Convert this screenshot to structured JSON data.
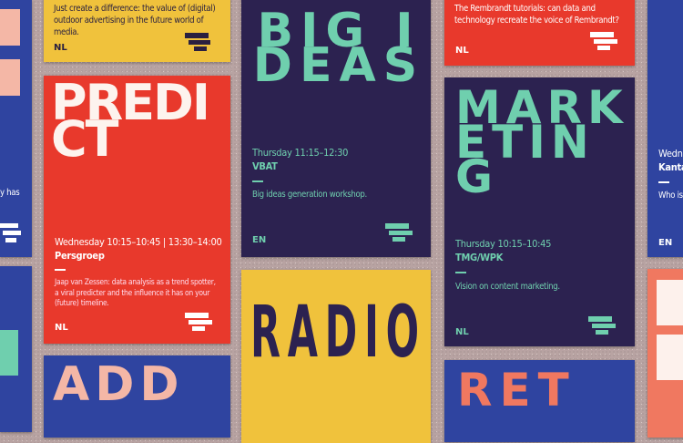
{
  "colors": {
    "red": "#e8392c",
    "yellow": "#f0c23c",
    "navy": "#2c2250",
    "blue": "#2f44a0",
    "mint": "#6fcfae",
    "pink": "#f4b7a6",
    "salmon": "#f07860"
  },
  "posters": {
    "yellow_top": {
      "desc": "Just create a difference: the value of (digital) outdoor advertising in the future world of media.",
      "lang": "NL"
    },
    "red_top": {
      "desc": "The Rembrandt tutorials: can data and technology recreate the voice of Rembrandt?",
      "lang": "NL"
    },
    "predict": {
      "headline": "PREDICT",
      "time": "Wednesday 10:15–10:45 | 13:30–14:00",
      "org": "Persgroep",
      "desc": "Jaap van Zessen: data analysis as a trend spotter, a viral predicter and the influence it has on your (future) timeline.",
      "lang": "NL"
    },
    "big_ideas": {
      "headline": "BIG IDEAS",
      "time": "Thursday 11:15–12:30",
      "org": "VBAT",
      "desc": "Big ideas generation workshop.",
      "lang": "EN"
    },
    "marketing": {
      "headline": "MARKETING",
      "time": "Thursday 10:15–10:45",
      "org": "TMG/WPK",
      "desc": "Vision on content marketing.",
      "lang": "NL"
    },
    "radio": {
      "headline": "RADIO"
    },
    "right_blue": {
      "time": "Wedne",
      "org": "Kantar",
      "desc": "Who is y",
      "lang": "EN"
    },
    "left_blue": {
      "desc": "y has"
    },
    "bottom_left": {
      "headline": "ADD"
    },
    "bottom_right": {
      "headline": "RET"
    }
  }
}
